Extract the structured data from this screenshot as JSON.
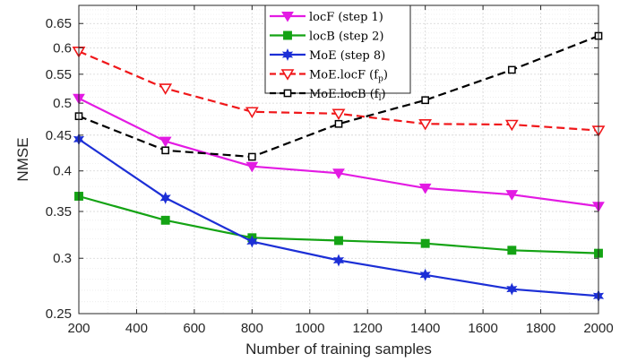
{
  "chart_data": {
    "type": "line",
    "xlabel": "Number of training samples",
    "ylabel": "NMSE",
    "y_scale": "log",
    "xlim": [
      200,
      2000
    ],
    "ylim": [
      0.25,
      0.69
    ],
    "x_ticks": [
      200,
      400,
      600,
      800,
      1000,
      1200,
      1400,
      1600,
      1800,
      2000
    ],
    "y_ticks": [
      0.25,
      0.3,
      0.35,
      0.4,
      0.45,
      0.5,
      0.55,
      0.6,
      0.65
    ],
    "x_tick_labels": [
      "200",
      "400",
      "600",
      "800",
      "1000",
      "1200",
      "1400",
      "1600",
      "1800",
      "2000"
    ],
    "y_tick_labels": [
      "0.25",
      "0.3",
      "0.35",
      "0.4",
      "0.45",
      "0.5",
      "0.55",
      "0.6",
      "0.65"
    ],
    "grid": true,
    "legend_position": "top-center",
    "x": [
      200,
      500,
      800,
      1100,
      1400,
      1700,
      2000
    ],
    "series": [
      {
        "name": "locF (step 1)",
        "legend_main": "locF (step 1)",
        "legend_sub": "",
        "legend_tail": "",
        "color": "#E31BE3",
        "marker": "triangle-down-filled",
        "dash": "solid",
        "values": [
          0.508,
          0.441,
          0.406,
          0.397,
          0.378,
          0.37,
          0.356
        ]
      },
      {
        "name": "locB (step 2)",
        "legend_main": "locB (step 2)",
        "legend_sub": "",
        "legend_tail": "",
        "color": "#14A314",
        "marker": "square-filled",
        "dash": "solid",
        "values": [
          0.368,
          0.34,
          0.321,
          0.318,
          0.315,
          0.308,
          0.305
        ]
      },
      {
        "name": "MoE (step 8)",
        "legend_main": "MoE (step 8)",
        "legend_sub": "",
        "legend_tail": "",
        "color": "#1C2FD6",
        "marker": "hexagram",
        "dash": "solid",
        "values": [
          0.444,
          0.366,
          0.317,
          0.298,
          0.284,
          0.271,
          0.265
        ]
      },
      {
        "name": "MoE.locF (fp)",
        "legend_main": "MoE.locF (f",
        "legend_sub": "p",
        "legend_tail": ")",
        "color": "#F0171A",
        "marker": "triangle-down-open",
        "dash": "dashed",
        "values": [
          0.593,
          0.525,
          0.486,
          0.483,
          0.467,
          0.466,
          0.457
        ]
      },
      {
        "name": "MoE.locB (fl)",
        "legend_main": "MoE.locB (f",
        "legend_sub": "l",
        "legend_tail": ")",
        "color": "#000000",
        "marker": "square-open",
        "dash": "dashed",
        "values": [
          0.479,
          0.428,
          0.419,
          0.467,
          0.505,
          0.558,
          0.624
        ]
      }
    ]
  }
}
